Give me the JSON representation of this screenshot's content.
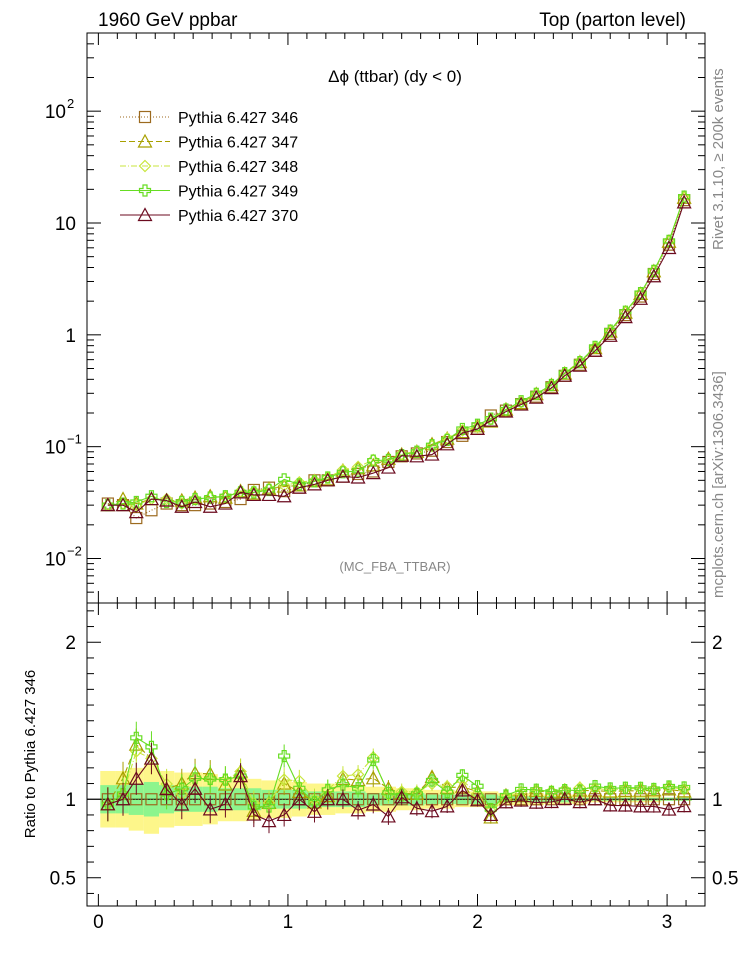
{
  "header": {
    "left": "1960 GeV ppbar",
    "right": "Top (parton level)"
  },
  "side": {
    "rivet": "Rivet 3.1.10, ≥ 200k events",
    "mcplots": "mcplots.cern.ch [arXiv:1306.3436]"
  },
  "chart_data": {
    "type": "line",
    "title": "Δϕ (ttbar) (dy < 0)",
    "watermark": "(MC_FBA_TTBAR)",
    "main": {
      "yscale": "log",
      "ylim": [
        0.004,
        500
      ],
      "yticks": [
        {
          "value": 0.01,
          "base": "10",
          "exp": "−2"
        },
        {
          "value": 0.1,
          "base": "10",
          "exp": "−1"
        },
        {
          "value": 1,
          "base": "1",
          "exp": ""
        },
        {
          "value": 10,
          "base": "10",
          "exp": ""
        },
        {
          "value": 100,
          "base": "10",
          "exp": "2"
        }
      ]
    },
    "ratio": {
      "ylabel": "Ratio to Pythia 6.427 346",
      "ylim": [
        0.32,
        2.25
      ],
      "yticks": [
        0.5,
        1,
        2
      ],
      "ytick_labels": [
        "0.5",
        "1",
        "2"
      ]
    },
    "xlim": [
      -0.06,
      3.2
    ],
    "xticks": [
      0,
      1,
      2,
      3
    ],
    "xtick_labels": [
      "0",
      "1",
      "2",
      "3"
    ],
    "legend_position": "top-left",
    "x": [
      0.05,
      0.13,
      0.2,
      0.28,
      0.36,
      0.44,
      0.51,
      0.59,
      0.67,
      0.75,
      0.82,
      0.9,
      0.98,
      1.06,
      1.14,
      1.21,
      1.29,
      1.37,
      1.45,
      1.53,
      1.6,
      1.68,
      1.76,
      1.84,
      1.92,
      2.0,
      2.07,
      2.15,
      2.23,
      2.31,
      2.39,
      2.46,
      2.54,
      2.62,
      2.7,
      2.78,
      2.86,
      2.93,
      3.01,
      3.09
    ],
    "series": [
      {
        "name": "Pythia 6.427 346",
        "color": "#9c6a1f",
        "dash": "1,2",
        "marker": "square",
        "values": [
          0.031,
          0.03,
          0.023,
          0.027,
          0.031,
          0.03,
          0.03,
          0.031,
          0.032,
          0.034,
          0.041,
          0.043,
          0.04,
          0.043,
          0.05,
          0.05,
          0.054,
          0.057,
          0.06,
          0.073,
          0.082,
          0.087,
          0.092,
          0.11,
          0.125,
          0.145,
          0.19,
          0.21,
          0.24,
          0.28,
          0.34,
          0.43,
          0.54,
          0.72,
          1.02,
          1.5,
          2.2,
          3.5,
          6.4,
          16.0
        ]
      },
      {
        "name": "Pythia 6.427 347",
        "color": "#a8a000",
        "dash": "6,3",
        "marker": "triangle",
        "values": [
          0.03,
          0.034,
          0.031,
          0.034,
          0.033,
          0.033,
          0.035,
          0.036,
          0.035,
          0.04,
          0.038,
          0.042,
          0.044,
          0.045,
          0.049,
          0.051,
          0.061,
          0.064,
          0.068,
          0.078,
          0.085,
          0.09,
          0.105,
          0.118,
          0.135,
          0.152,
          0.168,
          0.215,
          0.245,
          0.295,
          0.355,
          0.45,
          0.57,
          0.76,
          1.07,
          1.58,
          2.32,
          3.7,
          6.8,
          16.8
        ]
      },
      {
        "name": "Pythia 6.427 348",
        "color": "#c8e63c",
        "dash": "6,2,1,2",
        "marker": "diamond",
        "values": [
          0.03,
          0.031,
          0.03,
          0.034,
          0.034,
          0.031,
          0.034,
          0.035,
          0.036,
          0.04,
          0.04,
          0.042,
          0.045,
          0.048,
          0.05,
          0.053,
          0.062,
          0.066,
          0.076,
          0.075,
          0.086,
          0.091,
          0.101,
          0.119,
          0.14,
          0.15,
          0.176,
          0.212,
          0.251,
          0.296,
          0.357,
          0.457,
          0.58,
          0.77,
          1.08,
          1.6,
          2.35,
          3.72,
          6.9,
          17.0
        ]
      },
      {
        "name": "Pythia 6.427 349",
        "color": "#66dd22",
        "dash": "",
        "marker": "cross",
        "values": [
          0.03,
          0.031,
          0.032,
          0.036,
          0.032,
          0.032,
          0.034,
          0.035,
          0.036,
          0.039,
          0.039,
          0.041,
          0.051,
          0.046,
          0.049,
          0.053,
          0.059,
          0.061,
          0.075,
          0.076,
          0.084,
          0.09,
          0.103,
          0.115,
          0.144,
          0.157,
          0.178,
          0.215,
          0.255,
          0.297,
          0.356,
          0.455,
          0.57,
          0.78,
          1.09,
          1.61,
          2.36,
          3.73,
          6.92,
          17.2
        ]
      },
      {
        "name": "Pythia 6.427 370",
        "color": "#6b0a1f",
        "dash": "",
        "marker": "triangle",
        "values": [
          0.03,
          0.03,
          0.026,
          0.034,
          0.033,
          0.029,
          0.032,
          0.029,
          0.031,
          0.039,
          0.037,
          0.037,
          0.036,
          0.043,
          0.046,
          0.05,
          0.054,
          0.053,
          0.058,
          0.065,
          0.083,
          0.082,
          0.085,
          0.105,
          0.132,
          0.144,
          0.171,
          0.206,
          0.238,
          0.274,
          0.334,
          0.431,
          0.53,
          0.72,
          0.98,
          1.44,
          2.1,
          3.34,
          5.98,
          15.3
        ]
      }
    ],
    "ratio_band_yellow": [
      0.18,
      0.18,
      0.2,
      0.22,
      0.18,
      0.17,
      0.17,
      0.16,
      0.14,
      0.14,
      0.13,
      0.12,
      0.12,
      0.11,
      0.1,
      0.1,
      0.09,
      0.09,
      0.08,
      0.08,
      0.07,
      0.07,
      0.06,
      0.06,
      0.05,
      0.05,
      0.05,
      0.04,
      0.04,
      0.04,
      0.03,
      0.03,
      0.03,
      0.02,
      0.02,
      0.02,
      0.02,
      0.02,
      0.01,
      0.01
    ],
    "ratio_band_green": [
      0.09,
      0.09,
      0.1,
      0.11,
      0.09,
      0.08,
      0.08,
      0.08,
      0.07,
      0.07,
      0.07,
      0.06,
      0.06,
      0.06,
      0.05,
      0.05,
      0.05,
      0.05,
      0.04,
      0.04,
      0.04,
      0.04,
      0.03,
      0.03,
      0.03,
      0.03,
      0.03,
      0.02,
      0.02,
      0.02,
      0.02,
      0.02,
      0.01,
      0.01,
      0.01,
      0.01,
      0.01,
      0.01,
      0.01,
      0.01
    ]
  }
}
